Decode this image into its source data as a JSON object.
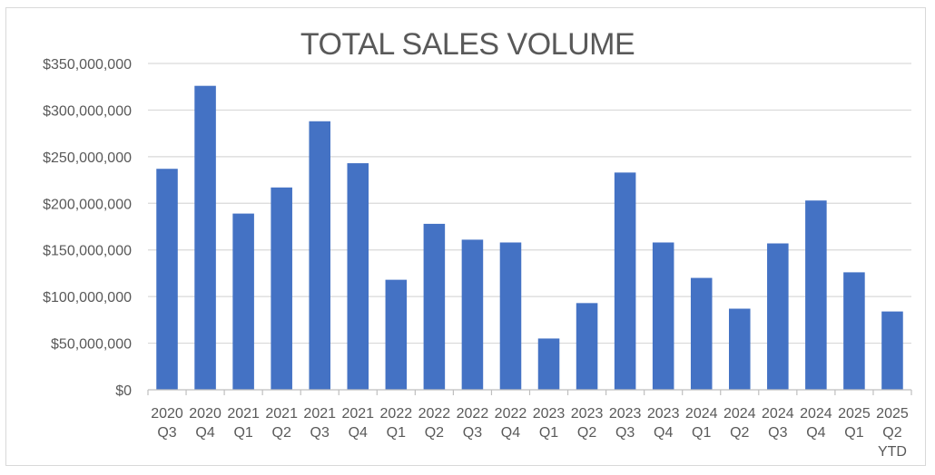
{
  "chart_data": {
    "type": "bar",
    "title": "TOTAL SALES VOLUME",
    "xlabel": "",
    "ylabel": "",
    "ylim": [
      0,
      350000000
    ],
    "yticks": [
      0,
      50000000,
      100000000,
      150000000,
      200000000,
      250000000,
      300000000,
      350000000
    ],
    "ytick_labels": [
      "$0",
      "$50,000,000",
      "$100,000,000",
      "$150,000,000",
      "$200,000,000",
      "$250,000,000",
      "$300,000,000",
      "$350,000,000"
    ],
    "grid": true,
    "bar_color": "#4472c4",
    "categories": [
      [
        "2020",
        "Q3"
      ],
      [
        "2020",
        "Q4"
      ],
      [
        "2021",
        "Q1"
      ],
      [
        "2021",
        "Q2"
      ],
      [
        "2021",
        "Q3"
      ],
      [
        "2021",
        "Q4"
      ],
      [
        "2022",
        "Q1"
      ],
      [
        "2022",
        "Q2"
      ],
      [
        "2022",
        "Q3"
      ],
      [
        "2022",
        "Q4"
      ],
      [
        "2023",
        "Q1"
      ],
      [
        "2023",
        "Q2"
      ],
      [
        "2023",
        "Q3"
      ],
      [
        "2023",
        "Q4"
      ],
      [
        "2024",
        "Q1"
      ],
      [
        "2024",
        "Q2"
      ],
      [
        "2024",
        "Q3"
      ],
      [
        "2024",
        "Q4"
      ],
      [
        "2025",
        "Q1"
      ],
      [
        "2025",
        "Q2",
        "YTD"
      ]
    ],
    "values": [
      237000000,
      326000000,
      189000000,
      217000000,
      288000000,
      243000000,
      118000000,
      178000000,
      161000000,
      158000000,
      55000000,
      93000000,
      233000000,
      158000000,
      120000000,
      87000000,
      157000000,
      203000000,
      126000000,
      84000000
    ]
  }
}
